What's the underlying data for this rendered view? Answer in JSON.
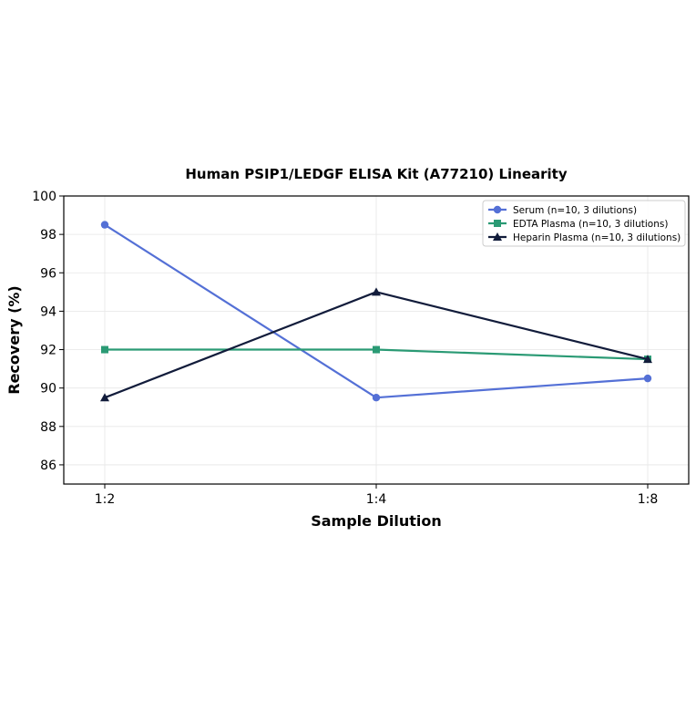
{
  "chart_data": {
    "type": "line",
    "title": "Human PSIP1/LEDGF ELISA Kit (A77210) Linearity",
    "xlabel": "Sample Dilution",
    "ylabel": "Recovery (%)",
    "categories": [
      "1:2",
      "1:4",
      "1:8"
    ],
    "ylim": [
      85,
      100
    ],
    "yticks": [
      "86",
      "88",
      "90",
      "92",
      "94",
      "96",
      "98",
      "100"
    ],
    "grid": true,
    "legend_position": "top-right",
    "series": [
      {
        "name": "Serum (n=10, 3 dilutions)",
        "values": [
          98.5,
          89.5,
          90.5
        ],
        "color": "#5470d6",
        "marker": "circle"
      },
      {
        "name": "EDTA Plasma (n=10, 3 dilutions)",
        "values": [
          92.0,
          92.0,
          91.5
        ],
        "color": "#2a9a74",
        "marker": "square"
      },
      {
        "name": "Heparin Plasma (n=10, 3 dilutions)",
        "values": [
          89.5,
          95.0,
          91.5
        ],
        "color": "#121c3b",
        "marker": "triangle"
      }
    ]
  }
}
